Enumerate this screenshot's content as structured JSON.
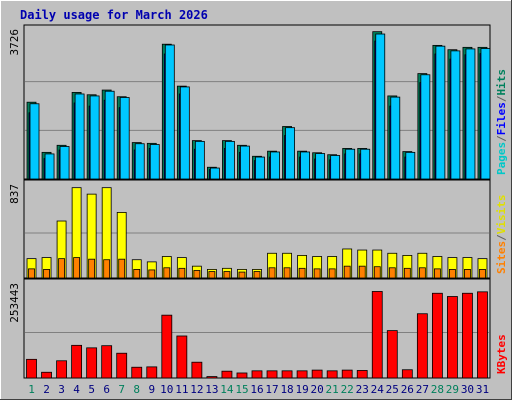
{
  "chart_data": {
    "type": "bar",
    "title": "Daily usage for March 2026",
    "days": [
      "1",
      "2",
      "3",
      "4",
      "5",
      "6",
      "7",
      "8",
      "9",
      "10",
      "11",
      "12",
      "13",
      "14",
      "15",
      "16",
      "17",
      "18",
      "19",
      "20",
      "21",
      "22",
      "23",
      "24",
      "25",
      "26",
      "27",
      "28",
      "29",
      "30",
      "31"
    ],
    "weekend_days": [
      "1",
      "7",
      "8",
      "14",
      "15",
      "21",
      "22",
      "28",
      "29"
    ],
    "panels": [
      {
        "id": "hits-files-pages",
        "ymax": 3726,
        "ymax_label": "3726",
        "legend": [
          {
            "text": "Pages",
            "color": "#00c8c8"
          },
          {
            "text": "/",
            "color": "#606060"
          },
          {
            "text": "Files",
            "color": "#0000ff"
          },
          {
            "text": "/",
            "color": "#606060"
          },
          {
            "text": "Hits",
            "color": "#00805c"
          }
        ],
        "series": [
          {
            "name": "Hits",
            "color": "#00805c",
            "values": [
              1960,
              680,
              860,
              2210,
              2150,
              2270,
              2100,
              930,
              910,
              3440,
              2370,
              980,
              300,
              980,
              860,
              580,
              710,
              1340,
              710,
              670,
              620,
              780,
              780,
              3760,
              2120,
              700,
              2690,
              3410,
              3300,
              3360,
              3360
            ]
          },
          {
            "name": "Files",
            "color": "#0000ff",
            "values": [
              1690,
              520,
              740,
              1940,
              1860,
              2010,
              1820,
              740,
              780,
              3190,
              2170,
              760,
              240,
              780,
              680,
              470,
              560,
              1110,
              560,
              510,
              490,
              640,
              640,
              3520,
              1860,
              560,
              2460,
              3190,
              3060,
              3170,
              3200
            ]
          },
          {
            "name": "Pages",
            "color": "#00c8ff",
            "values": [
              1920,
              640,
              830,
              2170,
              2120,
              2240,
              2080,
              900,
              880,
              3420,
              2350,
              960,
              280,
              960,
              840,
              560,
              690,
              1310,
              690,
              650,
              600,
              760,
              760,
              3700,
              2090,
              680,
              2660,
              3390,
              3270,
              3320,
              3330
            ]
          }
        ]
      },
      {
        "id": "visits-sites",
        "ymax": 837,
        "ymax_label": "837",
        "legend": [
          {
            "text": "Sites",
            "color": "#ff8000"
          },
          {
            "text": "/",
            "color": "#606060"
          },
          {
            "text": "Visits",
            "color": "#e0e000"
          }
        ],
        "series": [
          {
            "name": "Visits",
            "color": "#ffff00",
            "values": [
              180,
              190,
              530,
              840,
              780,
              840,
              610,
              170,
              150,
              200,
              190,
              110,
              80,
              90,
              80,
              80,
              230,
              230,
              210,
              200,
              200,
              270,
              260,
              260,
              230,
              210,
              230,
              200,
              190,
              190,
              180
            ]
          },
          {
            "name": "Sites",
            "color": "#ff8000",
            "values": [
              85,
              80,
              180,
              190,
              175,
              170,
              175,
              80,
              75,
              95,
              90,
              70,
              60,
              60,
              55,
              60,
              95,
              95,
              90,
              85,
              85,
              110,
              110,
              105,
              95,
              90,
              95,
              85,
              80,
              80,
              80
            ]
          }
        ]
      },
      {
        "id": "kbytes",
        "ymax": 253443,
        "ymax_label": "253443",
        "legend": [
          {
            "text": "KBytes",
            "color": "#ff0000"
          }
        ],
        "series": [
          {
            "name": "KBytes",
            "color": "#ff0000",
            "values": [
              52000,
              16000,
              48000,
              91000,
              84000,
              90000,
              69000,
              30000,
              31000,
              175000,
              117000,
              44000,
              4000,
              19000,
              14000,
              20000,
              20000,
              20000,
              20000,
              22000,
              20000,
              22000,
              21000,
              241000,
              132000,
              23000,
              179000,
              236000,
              227000,
              236000,
              240000
            ]
          }
        ]
      }
    ]
  }
}
